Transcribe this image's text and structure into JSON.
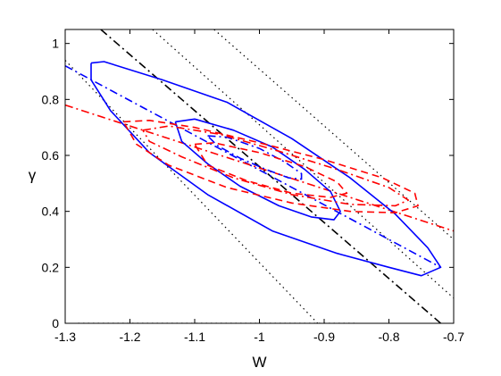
{
  "chart_data": {
    "type": "line",
    "xlabel": "W",
    "ylabel": "γ",
    "xlim": [
      -1.3,
      -0.7
    ],
    "ylim": [
      0,
      1.05
    ],
    "grid": false,
    "box": true,
    "x_ticks": [
      -1.3,
      -1.2,
      -1.1,
      -1,
      -0.9,
      -0.8,
      -0.7
    ],
    "x_tick_labels": [
      "-1.3",
      "-1.2",
      "-1.1",
      "-1",
      "-0.9",
      "-0.8",
      "-0.7"
    ],
    "y_ticks": [
      0,
      0.2,
      0.4,
      0.6,
      0.8,
      1
    ],
    "y_tick_labels": [
      "0",
      "0.2",
      "0.4",
      "0.6",
      "0.8",
      "1"
    ],
    "colors": {
      "blue": "#0000ff",
      "red": "#ff0000",
      "black": "#000000"
    },
    "series": [
      {
        "kind": "line",
        "color": "#000000",
        "style": "dotted",
        "points": [
          [
            -1.3,
            0.94
          ],
          [
            -0.91,
            0
          ]
        ]
      },
      {
        "kind": "line",
        "color": "#000000",
        "style": "dotted",
        "points": [
          [
            -1.165,
            1.05
          ],
          [
            -0.7,
            0.09
          ]
        ]
      },
      {
        "kind": "line",
        "color": "#000000",
        "style": "dotted",
        "points": [
          [
            -1.07,
            1.05
          ],
          [
            -0.7,
            0.3
          ]
        ]
      },
      {
        "kind": "line",
        "color": "#000000",
        "style": "dotted",
        "points": [
          [
            -1.28,
            0
          ],
          [
            -0.85,
            0
          ]
        ]
      },
      {
        "kind": "line",
        "color": "#000000",
        "style": "dashdot",
        "points": [
          [
            -1.245,
            1.05
          ],
          [
            -0.72,
            0
          ]
        ]
      },
      {
        "kind": "line",
        "color": "#0000ff",
        "style": "dashdot",
        "points": [
          [
            -1.3,
            0.92
          ],
          [
            -0.72,
            0.2
          ]
        ]
      },
      {
        "kind": "line",
        "color": "#ff0000",
        "style": "dashdot",
        "points": [
          [
            -1.3,
            0.78
          ],
          [
            -0.7,
            0.33
          ]
        ]
      },
      {
        "kind": "ellipse",
        "color": "#0000ff",
        "style": "solid",
        "points": [
          [
            -1.26,
            0.93
          ],
          [
            -1.24,
            0.935
          ],
          [
            -1.15,
            0.87
          ],
          [
            -1.05,
            0.79
          ],
          [
            -0.95,
            0.66
          ],
          [
            -0.86,
            0.52
          ],
          [
            -0.79,
            0.39
          ],
          [
            -0.74,
            0.27
          ],
          [
            -0.72,
            0.2
          ],
          [
            -0.75,
            0.17
          ],
          [
            -0.8,
            0.2
          ],
          [
            -0.88,
            0.25
          ],
          [
            -0.98,
            0.33
          ],
          [
            -1.08,
            0.46
          ],
          [
            -1.17,
            0.61
          ],
          [
            -1.23,
            0.76
          ],
          [
            -1.26,
            0.87
          ],
          [
            -1.26,
            0.93
          ]
        ]
      },
      {
        "kind": "ellipse",
        "color": "#0000ff",
        "style": "solid",
        "points": [
          [
            -1.13,
            0.72
          ],
          [
            -1.1,
            0.73
          ],
          [
            -1.04,
            0.69
          ],
          [
            -0.98,
            0.63
          ],
          [
            -0.93,
            0.55
          ],
          [
            -0.89,
            0.47
          ],
          [
            -0.875,
            0.4
          ],
          [
            -0.885,
            0.37
          ],
          [
            -0.92,
            0.38
          ],
          [
            -0.97,
            0.42
          ],
          [
            -1.03,
            0.49
          ],
          [
            -1.08,
            0.57
          ],
          [
            -1.12,
            0.65
          ],
          [
            -1.13,
            0.72
          ]
        ]
      },
      {
        "kind": "ellipse",
        "color": "#0000ff",
        "style": "dashdot",
        "points": [
          [
            -1.08,
            0.67
          ],
          [
            -1.05,
            0.665
          ],
          [
            -1.0,
            0.625
          ],
          [
            -0.96,
            0.575
          ],
          [
            -0.935,
            0.535
          ],
          [
            -0.935,
            0.515
          ],
          [
            -0.955,
            0.52
          ],
          [
            -0.99,
            0.55
          ],
          [
            -1.03,
            0.59
          ],
          [
            -1.065,
            0.635
          ],
          [
            -1.08,
            0.67
          ]
        ]
      },
      {
        "kind": "ellipse",
        "color": "#ff0000",
        "style": "dashed",
        "points": [
          [
            -1.21,
            0.72
          ],
          [
            -1.17,
            0.725
          ],
          [
            -1.1,
            0.7
          ],
          [
            -1.0,
            0.645
          ],
          [
            -0.9,
            0.585
          ],
          [
            -0.81,
            0.52
          ],
          [
            -0.76,
            0.465
          ],
          [
            -0.755,
            0.42
          ],
          [
            -0.79,
            0.395
          ],
          [
            -0.86,
            0.4
          ],
          [
            -0.95,
            0.43
          ],
          [
            -1.05,
            0.485
          ],
          [
            -1.14,
            0.565
          ],
          [
            -1.19,
            0.64
          ],
          [
            -1.21,
            0.72
          ]
        ]
      },
      {
        "kind": "ellipse",
        "color": "#ff0000",
        "style": "dashed",
        "points": [
          [
            -1.1,
            0.64
          ],
          [
            -1.07,
            0.645
          ],
          [
            -1.0,
            0.61
          ],
          [
            -0.93,
            0.56
          ],
          [
            -0.88,
            0.505
          ],
          [
            -0.865,
            0.465
          ],
          [
            -0.89,
            0.45
          ],
          [
            -0.95,
            0.465
          ],
          [
            -1.02,
            0.51
          ],
          [
            -1.08,
            0.565
          ],
          [
            -1.1,
            0.64
          ]
        ]
      },
      {
        "kind": "ellipse",
        "color": "#ff0000",
        "style": "dashdot",
        "points": [
          [
            -1.18,
            0.69
          ],
          [
            -1.14,
            0.705
          ],
          [
            -1.06,
            0.675
          ],
          [
            -0.97,
            0.615
          ],
          [
            -0.88,
            0.55
          ],
          [
            -0.8,
            0.485
          ],
          [
            -0.77,
            0.44
          ],
          [
            -0.79,
            0.42
          ],
          [
            -0.86,
            0.425
          ],
          [
            -0.95,
            0.46
          ],
          [
            -1.04,
            0.52
          ],
          [
            -1.12,
            0.595
          ],
          [
            -1.17,
            0.65
          ],
          [
            -1.18,
            0.69
          ]
        ]
      }
    ]
  }
}
